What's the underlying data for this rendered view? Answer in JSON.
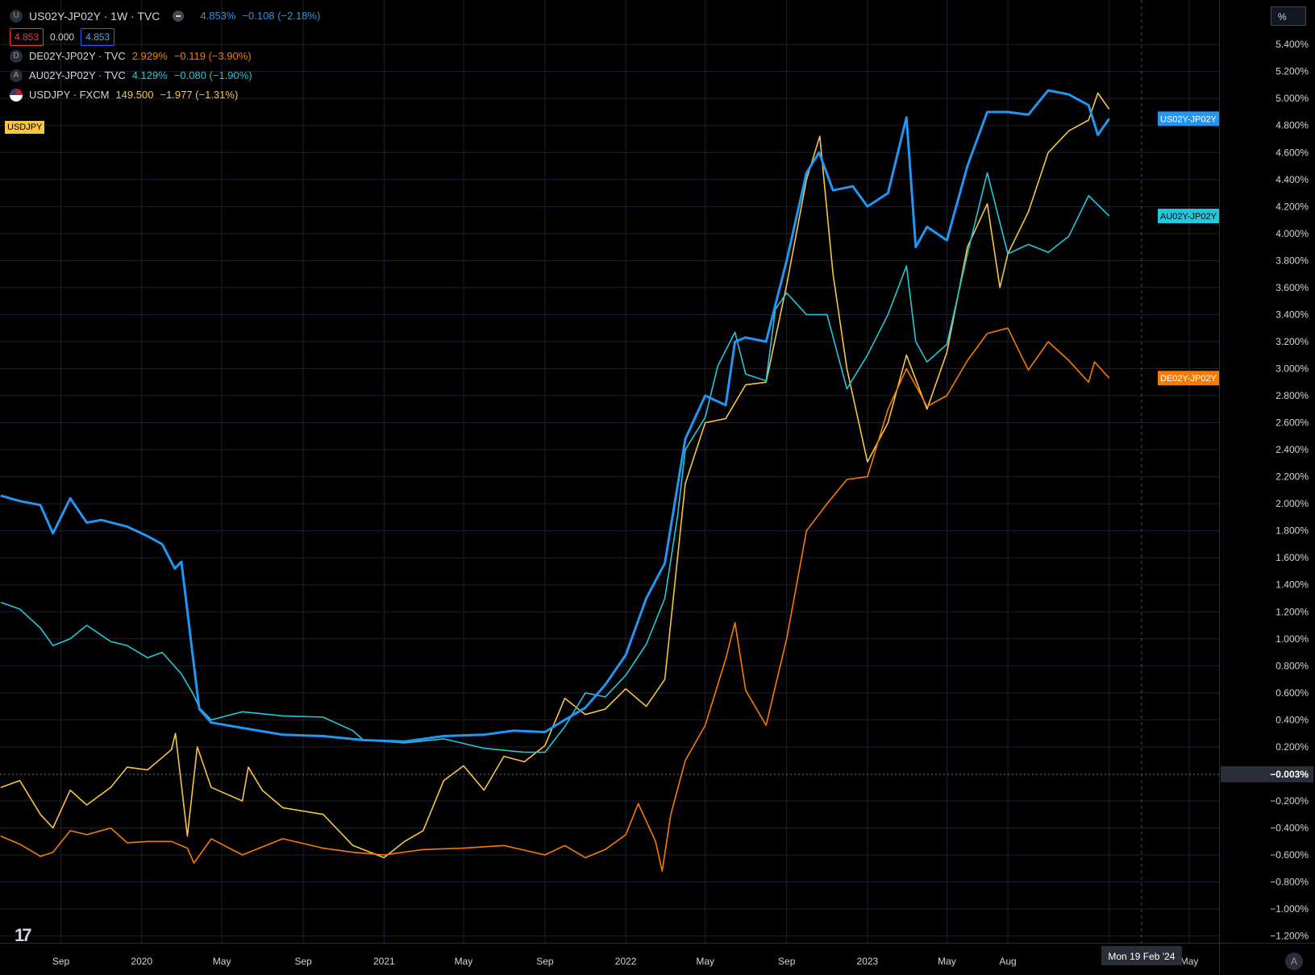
{
  "header": {
    "main_symbol_letter": "U",
    "main_title": "US02Y-JP02Y · 1W · TVC",
    "main_value": "4.853%",
    "main_change": "−0.108 (−2.18%)",
    "bid": "4.853",
    "spread": "0.000",
    "ask": "4.853"
  },
  "overlays": [
    {
      "letter": "D",
      "title": "DE02Y-JP02Y · TVC",
      "value": "2.929%",
      "change": "−0.119 (−3.90%)",
      "color": "#f57c00"
    },
    {
      "letter": "A",
      "title": "AU02Y-JP02Y · TVC",
      "value": "4.129%",
      "change": "−0.080 (−1.90%)",
      "color": "#26c6da"
    },
    {
      "letter": "",
      "title": "USDJPY · FXCM",
      "value": "149.500",
      "change": "−1.977 (−1.31%)",
      "color": "#f7c443"
    }
  ],
  "usdjpy_chip": "USDJPY",
  "unit_label": "%",
  "corner_label": "A",
  "colors": {
    "us": "#2196f3",
    "au": "#26c6da",
    "de": "#f57c00",
    "jpy": "#f7c443",
    "grid": "#1c2030",
    "text": "#d1d4dc"
  },
  "chart_data": {
    "type": "line",
    "y_unit": "%",
    "ylim": [
      -1.25,
      5.55
    ],
    "y_ticks": [
      "5.400%",
      "5.200%",
      "5.000%",
      "4.800%",
      "4.600%",
      "4.400%",
      "4.200%",
      "4.000%",
      "3.800%",
      "3.600%",
      "3.400%",
      "3.200%",
      "3.000%",
      "2.800%",
      "2.600%",
      "2.400%",
      "2.200%",
      "2.000%",
      "1.800%",
      "1.600%",
      "1.400%",
      "1.200%",
      "1.000%",
      "0.800%",
      "0.600%",
      "0.400%",
      "0.200%",
      "−0.200%",
      "−0.400%",
      "−0.600%",
      "−0.800%",
      "−1.000%",
      "−1.200%"
    ],
    "y_tick_values": [
      5.4,
      5.2,
      5.0,
      4.8,
      4.6,
      4.4,
      4.2,
      4.0,
      3.8,
      3.6,
      3.4,
      3.2,
      3.0,
      2.8,
      2.6,
      2.4,
      2.2,
      2.0,
      1.8,
      1.6,
      1.4,
      1.2,
      1.0,
      0.8,
      0.6,
      0.4,
      0.2,
      -0.2,
      -0.4,
      -0.6,
      -0.8,
      -1.0,
      -1.2
    ],
    "zero_label": "−0.003%",
    "zero_value": -0.003,
    "x_ticks": [
      "Sep",
      "2020",
      "May",
      "Sep",
      "2021",
      "May",
      "Sep",
      "2022",
      "May",
      "Sep",
      "2023",
      "May",
      "Aug",
      "2",
      "May"
    ],
    "x_tick_dates": [
      "2019-09-01",
      "2020-01-01",
      "2020-05-01",
      "2020-09-01",
      "2021-01-01",
      "2021-05-01",
      "2021-09-01",
      "2022-01-01",
      "2022-05-01",
      "2022-09-01",
      "2023-01-01",
      "2023-05-01",
      "2023-08-01",
      "2024-01-01",
      "2024-05-01"
    ],
    "x_start": "2019-06-01",
    "x_end": "2024-06-15",
    "crosshair_label": "Mon 19 Feb '24",
    "crosshair_date": "2024-02-19",
    "series": [
      {
        "name": "US02Y-JP02Y",
        "key": "us",
        "points": [
          [
            "2019-06-02",
            2.06
          ],
          [
            "2019-07-01",
            2.02
          ],
          [
            "2019-08-01",
            1.99
          ],
          [
            "2019-08-20",
            1.78
          ],
          [
            "2019-09-15",
            2.04
          ],
          [
            "2019-10-10",
            1.86
          ],
          [
            "2019-11-01",
            1.88
          ],
          [
            "2019-12-10",
            1.83
          ],
          [
            "2020-01-10",
            1.76
          ],
          [
            "2020-02-01",
            1.7
          ],
          [
            "2020-02-20",
            1.52
          ],
          [
            "2020-03-01",
            1.57
          ],
          [
            "2020-03-20",
            0.8
          ],
          [
            "2020-03-28",
            0.48
          ],
          [
            "2020-04-15",
            0.38
          ],
          [
            "2020-06-01",
            0.34
          ],
          [
            "2020-08-01",
            0.29
          ],
          [
            "2020-10-01",
            0.28
          ],
          [
            "2020-12-01",
            0.25
          ],
          [
            "2021-02-01",
            0.24
          ],
          [
            "2021-04-01",
            0.28
          ],
          [
            "2021-06-01",
            0.29
          ],
          [
            "2021-07-15",
            0.32
          ],
          [
            "2021-09-01",
            0.31
          ],
          [
            "2021-10-01",
            0.4
          ],
          [
            "2021-11-01",
            0.49
          ],
          [
            "2021-12-01",
            0.66
          ],
          [
            "2022-01-01",
            0.88
          ],
          [
            "2022-02-01",
            1.3
          ],
          [
            "2022-03-01",
            1.56
          ],
          [
            "2022-04-01",
            2.48
          ],
          [
            "2022-05-01",
            2.8
          ],
          [
            "2022-06-01",
            2.73
          ],
          [
            "2022-06-15",
            3.2
          ],
          [
            "2022-07-01",
            3.23
          ],
          [
            "2022-08-01",
            3.2
          ],
          [
            "2022-09-01",
            3.8
          ],
          [
            "2022-10-01",
            4.45
          ],
          [
            "2022-10-20",
            4.6
          ],
          [
            "2022-11-10",
            4.32
          ],
          [
            "2022-12-10",
            4.35
          ],
          [
            "2023-01-01",
            4.2
          ],
          [
            "2023-02-01",
            4.3
          ],
          [
            "2023-03-01",
            4.86
          ],
          [
            "2023-03-15",
            3.9
          ],
          [
            "2023-04-01",
            4.05
          ],
          [
            "2023-05-01",
            3.95
          ],
          [
            "2023-06-01",
            4.5
          ],
          [
            "2023-07-01",
            4.9
          ],
          [
            "2023-08-01",
            4.9
          ],
          [
            "2023-09-01",
            4.88
          ],
          [
            "2023-10-01",
            5.06
          ],
          [
            "2023-11-01",
            5.03
          ],
          [
            "2023-12-01",
            4.95
          ],
          [
            "2023-12-15",
            4.73
          ],
          [
            "2024-01-01",
            4.85
          ]
        ]
      },
      {
        "name": "AU02Y-JP02Y",
        "key": "au",
        "points": [
          [
            "2019-06-02",
            1.27
          ],
          [
            "2019-07-01",
            1.22
          ],
          [
            "2019-08-01",
            1.08
          ],
          [
            "2019-08-20",
            0.95
          ],
          [
            "2019-09-15",
            1.0
          ],
          [
            "2019-10-10",
            1.1
          ],
          [
            "2019-11-15",
            0.98
          ],
          [
            "2019-12-10",
            0.95
          ],
          [
            "2020-01-10",
            0.86
          ],
          [
            "2020-02-01",
            0.9
          ],
          [
            "2020-03-01",
            0.74
          ],
          [
            "2020-03-20",
            0.58
          ],
          [
            "2020-03-28",
            0.49
          ],
          [
            "2020-04-15",
            0.4
          ],
          [
            "2020-06-01",
            0.46
          ],
          [
            "2020-08-01",
            0.43
          ],
          [
            "2020-10-01",
            0.42
          ],
          [
            "2020-11-15",
            0.32
          ],
          [
            "2020-12-01",
            0.25
          ],
          [
            "2021-02-01",
            0.23
          ],
          [
            "2021-04-01",
            0.26
          ],
          [
            "2021-06-01",
            0.19
          ],
          [
            "2021-08-01",
            0.16
          ],
          [
            "2021-09-01",
            0.16
          ],
          [
            "2021-10-01",
            0.35
          ],
          [
            "2021-11-01",
            0.6
          ],
          [
            "2021-12-01",
            0.57
          ],
          [
            "2022-01-01",
            0.73
          ],
          [
            "2022-02-01",
            0.96
          ],
          [
            "2022-03-01",
            1.3
          ],
          [
            "2022-03-20",
            1.9
          ],
          [
            "2022-04-01",
            2.4
          ],
          [
            "2022-05-01",
            2.64
          ],
          [
            "2022-05-20",
            3.02
          ],
          [
            "2022-06-15",
            3.27
          ],
          [
            "2022-07-01",
            2.96
          ],
          [
            "2022-08-01",
            2.91
          ],
          [
            "2022-08-15",
            3.44
          ],
          [
            "2022-09-01",
            3.56
          ],
          [
            "2022-10-01",
            3.4
          ],
          [
            "2022-11-01",
            3.4
          ],
          [
            "2022-12-01",
            2.85
          ],
          [
            "2023-01-01",
            3.1
          ],
          [
            "2023-02-01",
            3.4
          ],
          [
            "2023-03-01",
            3.76
          ],
          [
            "2023-03-15",
            3.2
          ],
          [
            "2023-04-01",
            3.05
          ],
          [
            "2023-05-01",
            3.18
          ],
          [
            "2023-06-01",
            3.85
          ],
          [
            "2023-07-01",
            4.45
          ],
          [
            "2023-08-01",
            3.85
          ],
          [
            "2023-09-01",
            3.92
          ],
          [
            "2023-10-01",
            3.86
          ],
          [
            "2023-11-01",
            3.98
          ],
          [
            "2023-12-01",
            4.28
          ],
          [
            "2024-01-01",
            4.13
          ]
        ]
      },
      {
        "name": "DE02Y-JP02Y",
        "key": "de",
        "points": [
          [
            "2019-06-02",
            -0.46
          ],
          [
            "2019-07-01",
            -0.52
          ],
          [
            "2019-08-01",
            -0.61
          ],
          [
            "2019-08-20",
            -0.58
          ],
          [
            "2019-09-15",
            -0.42
          ],
          [
            "2019-10-10",
            -0.45
          ],
          [
            "2019-11-15",
            -0.4
          ],
          [
            "2019-12-10",
            -0.51
          ],
          [
            "2020-01-10",
            -0.5
          ],
          [
            "2020-02-15",
            -0.5
          ],
          [
            "2020-03-10",
            -0.55
          ],
          [
            "2020-03-20",
            -0.66
          ],
          [
            "2020-04-15",
            -0.48
          ],
          [
            "2020-06-01",
            -0.6
          ],
          [
            "2020-08-01",
            -0.48
          ],
          [
            "2020-10-01",
            -0.55
          ],
          [
            "2020-11-15",
            -0.58
          ],
          [
            "2021-01-01",
            -0.6
          ],
          [
            "2021-03-01",
            -0.56
          ],
          [
            "2021-05-01",
            -0.55
          ],
          [
            "2021-07-01",
            -0.53
          ],
          [
            "2021-09-01",
            -0.6
          ],
          [
            "2021-10-01",
            -0.53
          ],
          [
            "2021-11-01",
            -0.62
          ],
          [
            "2021-12-01",
            -0.56
          ],
          [
            "2022-01-01",
            -0.45
          ],
          [
            "2022-01-20",
            -0.22
          ],
          [
            "2022-02-15",
            -0.5
          ],
          [
            "2022-02-25",
            -0.72
          ],
          [
            "2022-03-10",
            -0.3
          ],
          [
            "2022-04-01",
            0.1
          ],
          [
            "2022-05-01",
            0.36
          ],
          [
            "2022-06-01",
            0.85
          ],
          [
            "2022-06-15",
            1.12
          ],
          [
            "2022-07-01",
            0.62
          ],
          [
            "2022-08-01",
            0.36
          ],
          [
            "2022-09-01",
            1.0
          ],
          [
            "2022-10-01",
            1.8
          ],
          [
            "2022-11-01",
            2.0
          ],
          [
            "2022-12-01",
            2.18
          ],
          [
            "2023-01-01",
            2.2
          ],
          [
            "2023-02-01",
            2.7
          ],
          [
            "2023-03-01",
            3.0
          ],
          [
            "2023-04-01",
            2.72
          ],
          [
            "2023-05-01",
            2.8
          ],
          [
            "2023-06-01",
            3.06
          ],
          [
            "2023-07-01",
            3.26
          ],
          [
            "2023-08-01",
            3.3
          ],
          [
            "2023-09-01",
            2.99
          ],
          [
            "2023-10-01",
            3.2
          ],
          [
            "2023-11-01",
            3.06
          ],
          [
            "2023-12-01",
            2.9
          ],
          [
            "2023-12-10",
            3.05
          ],
          [
            "2024-01-01",
            2.93
          ]
        ]
      },
      {
        "name": "USDJPY",
        "key": "jpy",
        "points": [
          [
            "2019-06-02",
            -0.1
          ],
          [
            "2019-07-01",
            -0.05
          ],
          [
            "2019-08-01",
            -0.3
          ],
          [
            "2019-08-20",
            -0.4
          ],
          [
            "2019-09-15",
            -0.12
          ],
          [
            "2019-10-10",
            -0.23
          ],
          [
            "2019-11-15",
            -0.1
          ],
          [
            "2019-12-10",
            0.05
          ],
          [
            "2020-01-10",
            0.03
          ],
          [
            "2020-02-15",
            0.18
          ],
          [
            "2020-02-21",
            0.3
          ],
          [
            "2020-03-10",
            -0.46
          ],
          [
            "2020-03-25",
            0.2
          ],
          [
            "2020-04-15",
            -0.1
          ],
          [
            "2020-06-01",
            -0.2
          ],
          [
            "2020-06-10",
            0.05
          ],
          [
            "2020-07-01",
            -0.12
          ],
          [
            "2020-08-01",
            -0.25
          ],
          [
            "2020-10-01",
            -0.3
          ],
          [
            "2020-11-15",
            -0.53
          ],
          [
            "2021-01-01",
            -0.62
          ],
          [
            "2021-02-01",
            -0.5
          ],
          [
            "2021-03-01",
            -0.42
          ],
          [
            "2021-04-01",
            -0.05
          ],
          [
            "2021-05-01",
            0.06
          ],
          [
            "2021-06-01",
            -0.12
          ],
          [
            "2021-07-01",
            0.13
          ],
          [
            "2021-08-01",
            0.09
          ],
          [
            "2021-09-01",
            0.21
          ],
          [
            "2021-10-01",
            0.56
          ],
          [
            "2021-11-01",
            0.44
          ],
          [
            "2021-12-01",
            0.48
          ],
          [
            "2022-01-01",
            0.63
          ],
          [
            "2022-02-01",
            0.5
          ],
          [
            "2022-03-01",
            0.7
          ],
          [
            "2022-04-01",
            2.15
          ],
          [
            "2022-05-01",
            2.6
          ],
          [
            "2022-06-01",
            2.63
          ],
          [
            "2022-07-01",
            2.88
          ],
          [
            "2022-08-01",
            2.9
          ],
          [
            "2022-09-01",
            3.62
          ],
          [
            "2022-10-01",
            4.4
          ],
          [
            "2022-10-21",
            4.72
          ],
          [
            "2022-11-10",
            3.7
          ],
          [
            "2022-12-01",
            3.0
          ],
          [
            "2023-01-01",
            2.31
          ],
          [
            "2023-02-01",
            2.6
          ],
          [
            "2023-03-01",
            3.1
          ],
          [
            "2023-04-01",
            2.7
          ],
          [
            "2023-05-01",
            3.12
          ],
          [
            "2023-06-01",
            3.9
          ],
          [
            "2023-07-01",
            4.22
          ],
          [
            "2023-07-20",
            3.6
          ],
          [
            "2023-08-01",
            3.85
          ],
          [
            "2023-09-01",
            4.16
          ],
          [
            "2023-10-01",
            4.6
          ],
          [
            "2023-11-01",
            4.76
          ],
          [
            "2023-12-01",
            4.84
          ],
          [
            "2023-12-15",
            5.04
          ],
          [
            "2024-01-01",
            4.92
          ]
        ]
      }
    ],
    "end_labels": [
      {
        "text": "US02Y-JP02Y",
        "value": 4.85,
        "key": "us"
      },
      {
        "text": "AU02Y-JP02Y",
        "value": 4.13,
        "key": "au"
      },
      {
        "text": "DE02Y-JP02Y",
        "value": 2.93,
        "key": "de"
      }
    ]
  }
}
